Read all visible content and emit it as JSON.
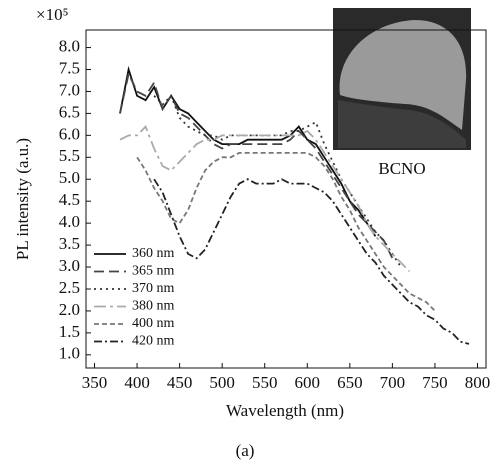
{
  "chart_data": {
    "type": "line",
    "multiplier": "×10⁵",
    "y_label": "PL intensity (a.u.)",
    "x_label": "Wavelength (nm)",
    "inset_label": "BCNO",
    "caption": "(a)",
    "xlim": [
      340,
      810
    ],
    "xticks": [
      350,
      400,
      450,
      500,
      550,
      600,
      650,
      700,
      750,
      800
    ],
    "ylim": [
      0.7,
      8.4
    ],
    "yticks": [
      {
        "value": 1,
        "label": "1.0"
      },
      1.5,
      {
        "value": 2,
        "label": "2.0"
      },
      2.5,
      {
        "value": 3,
        "label": "3.0"
      },
      3.5,
      {
        "value": 4,
        "label": "4.0"
      },
      4.5,
      {
        "value": 5,
        "label": "5.0"
      },
      5.5,
      {
        "value": 6,
        "label": "6.0"
      },
      6.5,
      {
        "value": 7,
        "label": "7.0"
      },
      7.5,
      {
        "value": 8,
        "label": "8.0"
      }
    ],
    "legend": "lower left",
    "series": [
      {
        "name": "360 nm",
        "color": "#111111",
        "dash": "none",
        "x": [
          380,
          390,
          400,
          410,
          420,
          430,
          440,
          450,
          460,
          470,
          480,
          490,
          500,
          510,
          520,
          530,
          540,
          550,
          560,
          570,
          580,
          590,
          600,
          610,
          620,
          630,
          640,
          650,
          660,
          670,
          680
        ],
        "values": [
          6.5,
          7.5,
          6.9,
          6.8,
          7.1,
          6.6,
          6.9,
          6.6,
          6.5,
          6.3,
          6.1,
          5.9,
          5.8,
          5.8,
          5.8,
          5.9,
          5.9,
          5.9,
          5.9,
          5.9,
          6.0,
          6.2,
          5.9,
          5.8,
          5.5,
          5.2,
          4.9,
          4.5,
          4.3,
          4.0,
          3.7
        ]
      },
      {
        "name": "365 nm",
        "color": "#444444",
        "dash": "10,5",
        "x": [
          380,
          390,
          400,
          410,
          420,
          430,
          440,
          450,
          460,
          470,
          480,
          490,
          500,
          510,
          520,
          530,
          540,
          550,
          560,
          570,
          580,
          590,
          600,
          610,
          620,
          630,
          640,
          650,
          660,
          670,
          680,
          690,
          700
        ],
        "values": [
          6.5,
          7.4,
          7.0,
          6.9,
          7.2,
          6.6,
          6.9,
          6.5,
          6.4,
          6.2,
          6.0,
          5.8,
          5.7,
          5.8,
          5.8,
          5.8,
          5.8,
          5.8,
          5.8,
          5.8,
          5.9,
          6.1,
          5.9,
          5.7,
          5.4,
          5.1,
          4.8,
          4.5,
          4.2,
          4.0,
          3.8,
          3.6,
          3.2
        ]
      },
      {
        "name": "370 nm",
        "color": "#333333",
        "dash": "2,4",
        "x": [
          420,
          430,
          440,
          450,
          460,
          470,
          480,
          490,
          500,
          510,
          520,
          530,
          540,
          550,
          560,
          570,
          580,
          590,
          600,
          610,
          620,
          630,
          640,
          650,
          660,
          670,
          680,
          690,
          700,
          710
        ],
        "values": [
          6.9,
          6.7,
          6.9,
          6.4,
          6.2,
          6.1,
          6.0,
          6.0,
          5.9,
          6.0,
          6.0,
          6.0,
          6.0,
          6.0,
          6.0,
          6.0,
          6.1,
          6.1,
          6.2,
          6.3,
          5.8,
          5.4,
          5.0,
          4.7,
          4.4,
          4.1,
          3.8,
          3.6,
          3.3,
          3.0
        ]
      },
      {
        "name": "380 nm",
        "color": "#aaaaaa",
        "dash": "12,4,3,4",
        "x": [
          380,
          390,
          400,
          410,
          420,
          430,
          440,
          450,
          460,
          470,
          480,
          490,
          500,
          510,
          520,
          530,
          540,
          550,
          560,
          570,
          580,
          590,
          600,
          610,
          620,
          630,
          640,
          650,
          660,
          670,
          680,
          690,
          700,
          710,
          720
        ],
        "values": [
          5.9,
          6.0,
          6.0,
          6.2,
          5.7,
          5.3,
          5.2,
          5.4,
          5.6,
          5.8,
          5.9,
          5.9,
          6.0,
          6.0,
          6.0,
          6.0,
          6.0,
          6.0,
          6.0,
          6.0,
          6.0,
          6.0,
          6.1,
          5.9,
          5.6,
          5.3,
          5.0,
          4.7,
          4.4,
          4.0,
          3.7,
          3.5,
          3.3,
          3.1,
          2.9
        ]
      },
      {
        "name": "400 nm",
        "color": "#777777",
        "dash": "5,3",
        "x": [
          400,
          410,
          420,
          430,
          440,
          450,
          460,
          470,
          480,
          490,
          500,
          510,
          520,
          530,
          540,
          550,
          560,
          570,
          580,
          590,
          600,
          610,
          620,
          630,
          640,
          650,
          660,
          670,
          680,
          690,
          700,
          710,
          720,
          730,
          740,
          750
        ],
        "values": [
          5.5,
          5.2,
          4.8,
          4.5,
          4.1,
          4.0,
          4.3,
          4.8,
          5.2,
          5.4,
          5.5,
          5.5,
          5.6,
          5.6,
          5.6,
          5.6,
          5.6,
          5.6,
          5.6,
          5.6,
          5.6,
          5.5,
          5.3,
          5.0,
          4.6,
          4.3,
          3.9,
          3.6,
          3.3,
          3.0,
          2.8,
          2.6,
          2.4,
          2.3,
          2.2,
          2.0
        ]
      },
      {
        "name": "420 nm",
        "color": "#222222",
        "dash": "8,3,2,3",
        "x": [
          420,
          430,
          440,
          450,
          460,
          470,
          480,
          490,
          500,
          510,
          520,
          530,
          540,
          550,
          560,
          570,
          580,
          590,
          600,
          610,
          620,
          630,
          640,
          650,
          660,
          670,
          680,
          690,
          700,
          710,
          720,
          730,
          740,
          750,
          760,
          770,
          780,
          790
        ],
        "values": [
          5.0,
          4.7,
          4.2,
          3.7,
          3.3,
          3.2,
          3.4,
          3.8,
          4.2,
          4.6,
          4.9,
          5.0,
          4.9,
          4.9,
          4.9,
          5.0,
          4.9,
          4.9,
          4.9,
          4.8,
          4.7,
          4.5,
          4.2,
          3.9,
          3.6,
          3.3,
          3.1,
          2.8,
          2.6,
          2.4,
          2.2,
          2.1,
          1.9,
          1.8,
          1.6,
          1.5,
          1.3,
          1.25
        ]
      }
    ]
  }
}
